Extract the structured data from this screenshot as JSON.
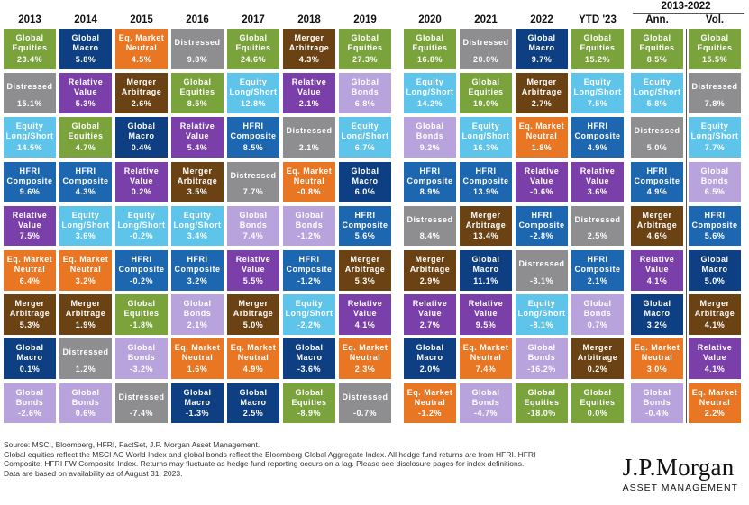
{
  "chart_data": {
    "type": "table",
    "group_header": "2013-2022",
    "columns": [
      "2013",
      "2014",
      "2015",
      "2016",
      "2017",
      "2018",
      "2019",
      "2020",
      "2021",
      "2022",
      "YTD '23",
      "Ann.",
      "Vol."
    ],
    "strategy_colors": {
      "Global Equities": "#7BA33C",
      "Global Macro": "#0D3F82",
      "Eq. Market Neutral": "#E97623",
      "Distressed": "#8E8E91",
      "Merger Arbitrage": "#6B4213",
      "Relative Value": "#7A3FA8",
      "Equity Long/Short": "#5EC4EA",
      "HFRI Composite": "#1D66B0",
      "Global Bonds": "#B9A3DD"
    },
    "rows": [
      [
        [
          "Global\nEquities",
          "23.4%"
        ],
        [
          "Global\nMacro",
          "5.8%"
        ],
        [
          "Eq. Market\nNeutral",
          "4.5%"
        ],
        [
          "Distressed",
          "9.8%"
        ],
        [
          "Global\nEquities",
          "24.6%"
        ],
        [
          "Merger\nArbitrage",
          "4.3%"
        ],
        [
          "Global\nEquities",
          "27.3%"
        ],
        [
          "Global\nEquities",
          "16.8%"
        ],
        [
          "Distressed",
          "20.0%"
        ],
        [
          "Global\nMacro",
          "9.7%"
        ],
        [
          "Global\nEquities",
          "15.2%"
        ],
        [
          "Global\nEquities",
          "8.5%"
        ],
        [
          "Global\nEquities",
          "15.5%"
        ]
      ],
      [
        [
          "Distressed",
          "15.1%"
        ],
        [
          "Relative\nValue",
          "5.3%"
        ],
        [
          "Merger\nArbitrage",
          "2.6%"
        ],
        [
          "Global\nEquities",
          "8.5%"
        ],
        [
          "Equity\nLong/Short",
          "12.8%"
        ],
        [
          "Relative\nValue",
          "2.1%"
        ],
        [
          "Global\nBonds",
          "6.8%"
        ],
        [
          "Equity\nLong/Short",
          "14.2%"
        ],
        [
          "Global\nEquities",
          "19.0%"
        ],
        [
          "Merger\nArbitrage",
          "2.7%"
        ],
        [
          "Equity\nLong/Short",
          "7.5%"
        ],
        [
          "Equity\nLong/Short",
          "5.8%"
        ],
        [
          "Distressed",
          "7.8%"
        ]
      ],
      [
        [
          "Equity\nLong/Short",
          "14.5%"
        ],
        [
          "Global\nEquities",
          "4.7%"
        ],
        [
          "Global\nMacro",
          "0.4%"
        ],
        [
          "Relative\nValue",
          "5.4%"
        ],
        [
          "HFRI\nComposite",
          "8.5%"
        ],
        [
          "Distressed",
          "2.1%"
        ],
        [
          "Equity\nLong/Short",
          "6.7%"
        ],
        [
          "Global\nBonds",
          "9.2%"
        ],
        [
          "Equity\nLong/Short",
          "16.3%"
        ],
        [
          "Eq. Market\nNeutral",
          "1.8%"
        ],
        [
          "HFRI\nComposite",
          "4.9%"
        ],
        [
          "Distressed",
          "5.0%"
        ],
        [
          "Equity\nLong/Short",
          "7.7%"
        ]
      ],
      [
        [
          "HFRI\nComposite",
          "9.6%"
        ],
        [
          "HFRI\nComposite",
          "4.3%"
        ],
        [
          "Relative\nValue",
          "0.2%"
        ],
        [
          "Merger\nArbitrage",
          "3.5%"
        ],
        [
          "Distressed",
          "7.7%"
        ],
        [
          "Eq. Market\nNeutral",
          "-0.8%"
        ],
        [
          "Global\nMacro",
          "6.0%"
        ],
        [
          "HFRI\nComposite",
          "8.9%"
        ],
        [
          "HFRI\nComposite",
          "13.9%"
        ],
        [
          "Relative\nValue",
          "-0.6%"
        ],
        [
          "Relative\nValue",
          "3.6%"
        ],
        [
          "HFRI\nComposite",
          "4.9%"
        ],
        [
          "Global\nBonds",
          "6.5%"
        ]
      ],
      [
        [
          "Relative\nValue",
          "7.5%"
        ],
        [
          "Equity\nLong/Short",
          "3.6%"
        ],
        [
          "Equity\nLong/Short",
          "-0.2%"
        ],
        [
          "Equity\nLong/Short",
          "3.4%"
        ],
        [
          "Global\nBonds",
          "7.4%"
        ],
        [
          "Global\nBonds",
          "-1.2%"
        ],
        [
          "HFRI\nComposite",
          "5.6%"
        ],
        [
          "Distressed",
          "8.4%"
        ],
        [
          "Merger\nArbitrage",
          "13.4%"
        ],
        [
          "HFRI\nComposite",
          "-2.8%"
        ],
        [
          "Distressed",
          "2.5%"
        ],
        [
          "Merger\nArbitrage",
          "4.6%"
        ],
        [
          "HFRI\nComposite",
          "5.6%"
        ]
      ],
      [
        [
          "Eq. Market\nNeutral",
          "6.4%"
        ],
        [
          "Eq. Market\nNeutral",
          "3.2%"
        ],
        [
          "HFRI\nComposite",
          "-0.2%"
        ],
        [
          "HFRI\nComposite",
          "3.2%"
        ],
        [
          "Relative\nValue",
          "5.5%"
        ],
        [
          "HFRI\nComposite",
          "-1.2%"
        ],
        [
          "Merger\nArbitrage",
          "5.3%"
        ],
        [
          "Merger\nArbitrage",
          "2.9%"
        ],
        [
          "Global\nMacro",
          "11.1%"
        ],
        [
          "Distressed",
          "-3.1%"
        ],
        [
          "HFRI\nComposite",
          "2.1%"
        ],
        [
          "Relative\nValue",
          "4.1%"
        ],
        [
          "Global\nMacro",
          "5.0%"
        ]
      ],
      [
        [
          "Merger\nArbitrage",
          "5.3%"
        ],
        [
          "Merger\nArbitrage",
          "1.9%"
        ],
        [
          "Global\nEquities",
          "-1.8%"
        ],
        [
          "Global\nBonds",
          "2.1%"
        ],
        [
          "Merger\nArbitrage",
          "5.0%"
        ],
        [
          "Equity\nLong/Short",
          "-2.2%"
        ],
        [
          "Relative\nValue",
          "4.1%"
        ],
        [
          "Relative\nValue",
          "2.7%"
        ],
        [
          "Relative\nValue",
          "9.5%"
        ],
        [
          "Equity\nLong/Short",
          "-8.1%"
        ],
        [
          "Global\nBonds",
          "0.7%"
        ],
        [
          "Global\nMacro",
          "3.2%"
        ],
        [
          "Merger\nArbitrage",
          "4.1%"
        ]
      ],
      [
        [
          "Global\nMacro",
          "0.1%"
        ],
        [
          "Distressed",
          "1.2%"
        ],
        [
          "Global\nBonds",
          "-3.2%"
        ],
        [
          "Eq. Market\nNeutral",
          "1.6%"
        ],
        [
          "Eq. Market\nNeutral",
          "4.9%"
        ],
        [
          "Global\nMacro",
          "-3.6%"
        ],
        [
          "Eq. Market\nNeutral",
          "2.3%"
        ],
        [
          "Global\nMacro",
          "2.0%"
        ],
        [
          "Eq. Market\nNeutral",
          "7.4%"
        ],
        [
          "Global\nBonds",
          "-16.2%"
        ],
        [
          "Merger\nArbitrage",
          "0.2%"
        ],
        [
          "Eq. Market\nNeutral",
          "3.0%"
        ],
        [
          "Relative\nValue",
          "4.1%"
        ]
      ],
      [
        [
          "Global\nBonds",
          "-2.6%"
        ],
        [
          "Global\nBonds",
          "0.6%"
        ],
        [
          "Distressed",
          "-7.4%"
        ],
        [
          "Global\nMacro",
          "-1.3%"
        ],
        [
          "Global\nMacro",
          "2.5%"
        ],
        [
          "Global\nEquities",
          "-8.9%"
        ],
        [
          "Distressed",
          "-0.7%"
        ],
        [
          "Eq. Market\nNeutral",
          "-1.2%"
        ],
        [
          "Global\nBonds",
          "-4.7%"
        ],
        [
          "Global\nEquities",
          "-18.0%"
        ],
        [
          "Global\nEquities",
          "0.0%"
        ],
        [
          "Global\nBonds",
          "-0.4%"
        ],
        [
          "Eq. Market\nNeutral",
          "2.2%"
        ]
      ]
    ]
  },
  "footer": {
    "line1": "Source: MSCI, Bloomberg, HFRI, FactSet, J.P. Morgan Asset Management.",
    "line2": "Global equities reflect the MSCI AC World Index and global bonds reflect the Bloomberg Global Aggregate Index. All hedge fund returns are from HFRI. HFRI",
    "line3": "Composite: HFRI FW Composite Index. Returns may fluctuate as hedge fund reporting occurs on a lag. Please see disclosure pages for index definitions.",
    "line4": "Data are based on availability as of August 31, 2023."
  },
  "logo": {
    "brand": "J.P.Morgan",
    "sub": "ASSET MANAGEMENT"
  }
}
